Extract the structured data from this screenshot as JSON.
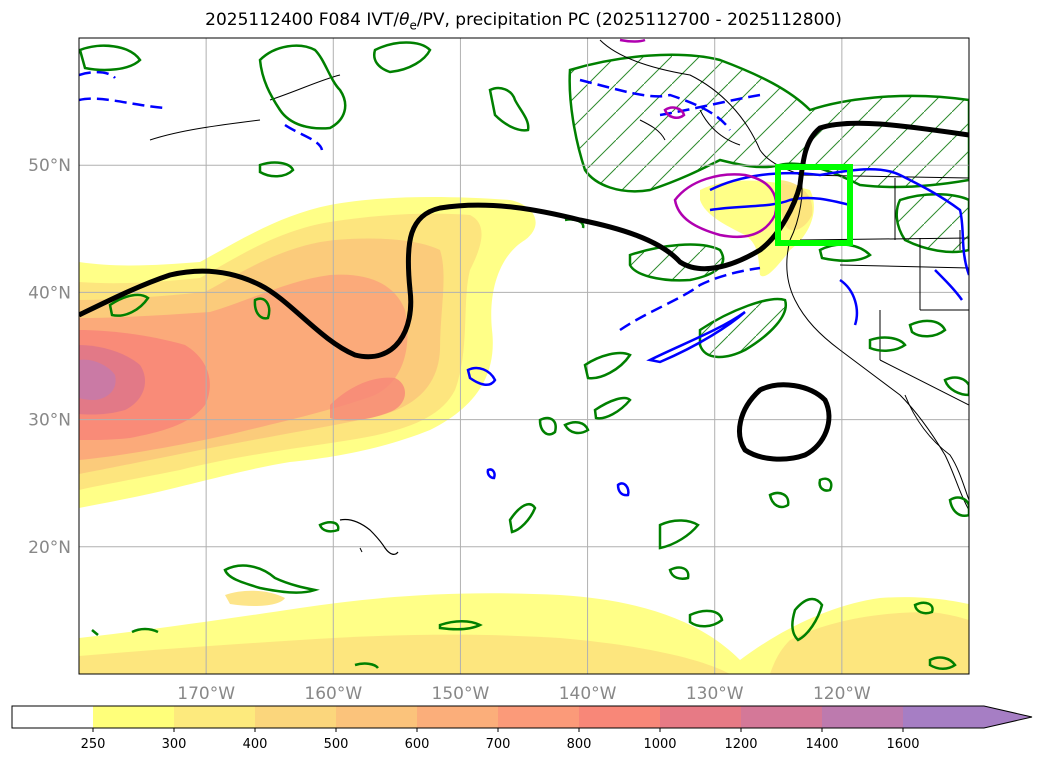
{
  "title": {
    "prefix": "2025112400 F084 IVT/",
    "theta_symbol": "θ",
    "theta_sub": "e",
    "suffix": "/PV, precipitation PC (2025112700 - 2025112800)"
  },
  "map": {
    "projection": "lat-lon",
    "lon_range": [
      -180,
      -110
    ],
    "lat_range": [
      10,
      60
    ],
    "grid": true,
    "lat_ticks": [
      {
        "value": 50,
        "label": "50°N"
      },
      {
        "value": 40,
        "label": "40°N"
      },
      {
        "value": 30,
        "label": "30°N"
      },
      {
        "value": 20,
        "label": "20°N"
      }
    ],
    "lon_ticks": [
      {
        "value": -170,
        "label": "170°W"
      },
      {
        "value": -160,
        "label": "160°W"
      },
      {
        "value": -150,
        "label": "150°W"
      },
      {
        "value": -140,
        "label": "140°W"
      },
      {
        "value": -130,
        "label": "130°W"
      },
      {
        "value": -120,
        "label": "120°W"
      }
    ],
    "highlight_box": {
      "lon": [
        -125,
        -119
      ],
      "lat": [
        44,
        50
      ],
      "color": "#00ff00"
    },
    "contour_colors": {
      "pv": "#000000",
      "theta_e_positive": "#0000ff",
      "precip": "#008000",
      "magenta": "#b000b0"
    }
  },
  "colorbar": {
    "levels": [
      {
        "label": "250",
        "color": "#ffff7a"
      },
      {
        "label": "300",
        "color": "#fdea7d"
      },
      {
        "label": "400",
        "color": "#fbd67c"
      },
      {
        "label": "500",
        "color": "#fbc37b"
      },
      {
        "label": "600",
        "color": "#fbae7a"
      },
      {
        "label": "700",
        "color": "#fb9a79"
      },
      {
        "label": "800",
        "color": "#f88778"
      },
      {
        "label": "1000",
        "color": "#e77a85"
      },
      {
        "label": "1200",
        "color": "#d47898"
      },
      {
        "label": "1400",
        "color": "#bd7aae"
      },
      {
        "label": "1600",
        "color": "#a67ec4"
      }
    ],
    "extend": "max"
  }
}
